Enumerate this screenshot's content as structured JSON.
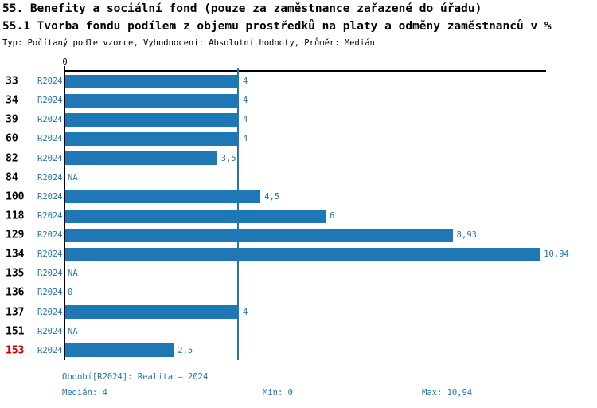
{
  "header": {
    "title_line1": "55. Benefity a sociální fond (pouze za zaměstnance zařazené do úřadu)",
    "title_line2": "55.1 Tvorba fondu podílem z objemu prostředků na platy a odměny zaměstnanců v %",
    "meta_line": "Typ: Počítaný podle vzorce, Vyhodnocení: Absolutní hodnoty, Průměr: Medián"
  },
  "chart_data": {
    "type": "bar",
    "orientation": "horizontal",
    "title": "55.1 Tvorba fondu podílem z objemu prostředků na platy a odměny zaměstnanců v %",
    "series_label": "R2024",
    "categories": [
      "33",
      "34",
      "39",
      "60",
      "82",
      "84",
      "100",
      "118",
      "129",
      "134",
      "135",
      "136",
      "137",
      "151",
      "153"
    ],
    "values": [
      4,
      4,
      4,
      4,
      3.5,
      null,
      4.5,
      6,
      8.93,
      10.94,
      null,
      0,
      4,
      null,
      2.5
    ],
    "value_labels": [
      "4",
      "4",
      "4",
      "4",
      "3,5",
      "NA",
      "4,5",
      "6",
      "8,93",
      "10,94",
      "NA",
      "0",
      "4",
      "NA",
      "2,5"
    ],
    "highlighted_categories": [
      "153"
    ],
    "median_line_value": 4,
    "axis": {
      "zero_tick_label": "0",
      "xlim": [
        0,
        11.07
      ],
      "grid": false
    },
    "legend_position": "none"
  },
  "footer": {
    "period": "Období[R2024]: Realita – 2024",
    "median": "Medián: 4",
    "min": "Min: 0",
    "max": "Max: 10,94"
  },
  "colors": {
    "bar": "#2077b5",
    "accent_text": "#2077b5",
    "highlight_row": "#cc0000",
    "axis": "#000000"
  }
}
